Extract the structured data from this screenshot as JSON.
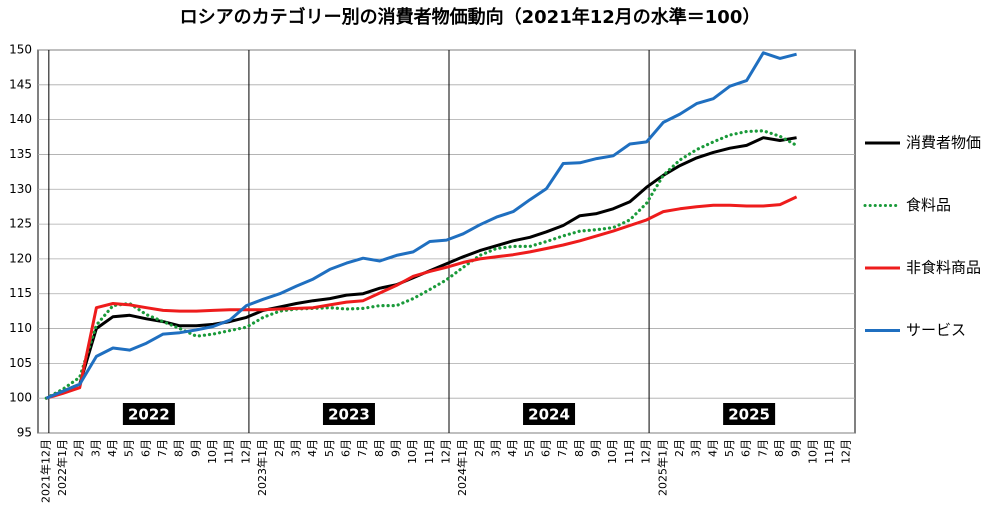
{
  "chart_data": {
    "type": "line",
    "title": "ロシアのカテゴリー別の消費者物価動向（2021年12月の水準＝100）",
    "categories": [
      "2021年12月",
      "2022年1月",
      "2月",
      "3月",
      "4月",
      "5月",
      "6月",
      "7月",
      "8月",
      "9月",
      "10月",
      "11月",
      "12月",
      "2023年1月",
      "2月",
      "3月",
      "4月",
      "5月",
      "6月",
      "7月",
      "8月",
      "9月",
      "10月",
      "11月",
      "12月",
      "2024年1月",
      "2月",
      "3月",
      "4月",
      "5月",
      "6月",
      "7月",
      "8月",
      "9月",
      "10月",
      "11月",
      "12月",
      "2025年1月",
      "2月",
      "3月",
      "4月",
      "5月",
      "6月",
      "7月",
      "8月",
      "9月",
      "10月",
      "11月",
      "12月"
    ],
    "series": [
      {
        "name": "消費者物価",
        "color": "#000000",
        "style": "solid",
        "values": [
          100,
          101,
          102,
          110,
          111.7,
          111.9,
          111.4,
          111.0,
          110.4,
          110.4,
          110.6,
          111.0,
          111.6,
          112.6,
          113.1,
          113.6,
          114.0,
          114.3,
          114.8,
          115.0,
          115.8,
          116.3,
          117.3,
          118.3,
          119.3,
          120.3,
          121.2,
          121.9,
          122.6,
          123.1,
          123.9,
          124.8,
          126.2,
          126.5,
          127.2,
          128.2,
          130.3,
          132.0,
          133.4,
          134.5,
          135.3,
          135.9,
          136.3,
          137.4,
          137.0,
          137.4,
          null,
          null,
          null
        ]
      },
      {
        "name": "食料品",
        "color": "#1a9a3a",
        "style": "dotted",
        "values": [
          100,
          101.3,
          103,
          110.5,
          113.3,
          113.6,
          112.0,
          111.0,
          110.0,
          108.9,
          109.2,
          109.7,
          110.2,
          111.6,
          112.5,
          112.8,
          112.9,
          113.0,
          112.8,
          112.9,
          113.3,
          113.3,
          114.3,
          115.6,
          117.0,
          118.8,
          120.5,
          121.5,
          121.8,
          121.8,
          122.5,
          123.3,
          124.0,
          124.2,
          124.5,
          125.6,
          128.0,
          132.0,
          134.2,
          135.7,
          136.8,
          137.8,
          138.3,
          138.4,
          137.6,
          136.3,
          null,
          null,
          null
        ]
      },
      {
        "name": "非食料商品",
        "color": "#ee1c1c",
        "style": "solid",
        "values": [
          100,
          100.7,
          101.5,
          113.0,
          113.6,
          113.4,
          113.0,
          112.6,
          112.5,
          112.5,
          112.6,
          112.7,
          112.7,
          112.7,
          112.8,
          112.9,
          113.0,
          113.4,
          113.8,
          114.0,
          115.1,
          116.2,
          117.5,
          118.2,
          118.8,
          119.5,
          120.0,
          120.3,
          120.6,
          121.0,
          121.5,
          122.0,
          122.6,
          123.3,
          124.0,
          124.8,
          125.6,
          126.8,
          127.2,
          127.5,
          127.7,
          127.7,
          127.6,
          127.6,
          127.8,
          128.9,
          null,
          null,
          null
        ]
      },
      {
        "name": "サービス",
        "color": "#1f6fc0",
        "style": "solid",
        "values": [
          100,
          101,
          102,
          106,
          107.2,
          106.9,
          107.9,
          109.2,
          109.4,
          109.8,
          110.3,
          111.2,
          113.3,
          114.2,
          115.0,
          116.1,
          117.1,
          118.5,
          119.4,
          120.1,
          119.7,
          120.5,
          121.0,
          122.5,
          122.7,
          123.6,
          124.9,
          126.0,
          126.8,
          128.5,
          130.1,
          133.7,
          133.8,
          134.4,
          134.8,
          136.5,
          136.8,
          139.6,
          140.8,
          142.3,
          143.0,
          144.8,
          145.6,
          149.6,
          148.8,
          149.4,
          null,
          null,
          null
        ]
      }
    ],
    "annotations": [
      "2022",
      "2023",
      "2024",
      "2025"
    ],
    "ylim": [
      95,
      150
    ],
    "yticks": [
      95,
      100,
      105,
      110,
      115,
      120,
      125,
      130,
      135,
      140,
      145,
      150
    ],
    "grid": true,
    "legend": "right"
  }
}
